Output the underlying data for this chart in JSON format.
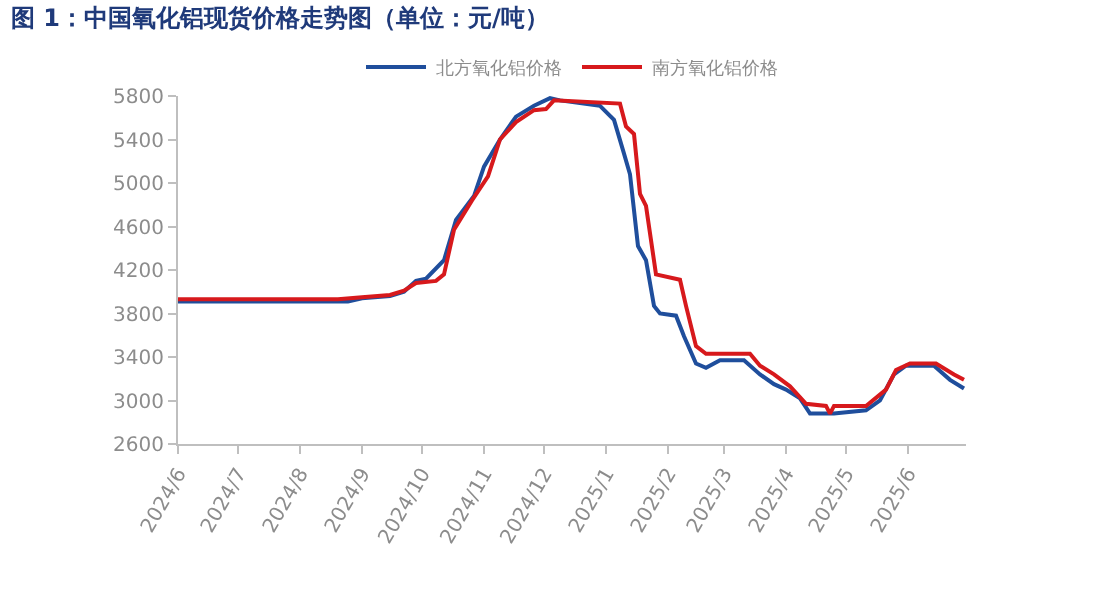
{
  "chart_data": {
    "type": "line",
    "title": "图 1：中国氧化铝现货价格走势图（单位：元/吨）",
    "xlim": [
      "2024-06-01",
      "2025-06-30"
    ],
    "xticks": [
      {
        "value": "2024-06-01",
        "label": "2024/6"
      },
      {
        "value": "2024-07-01",
        "label": "2024/7"
      },
      {
        "value": "2024-08-01",
        "label": "2024/8"
      },
      {
        "value": "2024-09-01",
        "label": "2024/9"
      },
      {
        "value": "2024-10-01",
        "label": "2024/10"
      },
      {
        "value": "2024-11-01",
        "label": "2024/11"
      },
      {
        "value": "2024-12-01",
        "label": "2024/12"
      },
      {
        "value": "2025-01-01",
        "label": "2025/1"
      },
      {
        "value": "2025-02-01",
        "label": "2025/2"
      },
      {
        "value": "2025-03-01",
        "label": "2025/3"
      },
      {
        "value": "2025-04-01",
        "label": "2025/4"
      },
      {
        "value": "2025-05-01",
        "label": "2025/5"
      },
      {
        "value": "2025-06-01",
        "label": "2025/6"
      }
    ],
    "ylim": [
      2600,
      5800
    ],
    "yticks": [
      2600,
      3000,
      3400,
      3800,
      4200,
      4600,
      5000,
      5400,
      5800
    ],
    "legend": "top",
    "marker": "none",
    "line_style": "solid",
    "series": [
      {
        "name": "北方氧化铝价格",
        "color": "#1f4e9c",
        "x": [
          "2024-06-01",
          "2024-08-25",
          "2024-09-01",
          "2024-09-15",
          "2024-09-22",
          "2024-09-28",
          "2024-10-03",
          "2024-10-12",
          "2024-10-18",
          "2024-10-27",
          "2024-11-01",
          "2024-11-09",
          "2024-11-17",
          "2024-11-26",
          "2024-12-04",
          "2024-12-09",
          "2024-12-29",
          "2025-01-05",
          "2025-01-10",
          "2025-01-13",
          "2025-01-17",
          "2025-01-21",
          "2025-01-25",
          "2025-01-28",
          "2025-02-05",
          "2025-02-09",
          "2025-02-15",
          "2025-02-20",
          "2025-02-27",
          "2025-03-11",
          "2025-03-19",
          "2025-03-26",
          "2025-04-01",
          "2025-04-08",
          "2025-04-13",
          "2025-04-25",
          "2025-05-11",
          "2025-05-18",
          "2025-05-25",
          "2025-05-31",
          "2025-06-14",
          "2025-06-22",
          "2025-06-29"
        ],
        "values": [
          3910,
          3910,
          3940,
          3960,
          4000,
          4100,
          4120,
          4290,
          4660,
          4880,
          5150,
          5400,
          5610,
          5710,
          5780,
          5760,
          5710,
          5580,
          5270,
          5080,
          4420,
          4290,
          3870,
          3800,
          3780,
          3590,
          3340,
          3300,
          3370,
          3370,
          3240,
          3150,
          3100,
          3020,
          2880,
          2880,
          2910,
          3000,
          3240,
          3320,
          3320,
          3190,
          3110
        ]
      },
      {
        "name": "南方氧化铝价格",
        "color": "#d7191c",
        "x": [
          "2024-06-01",
          "2024-08-20",
          "2024-09-01",
          "2024-09-15",
          "2024-09-22",
          "2024-09-28",
          "2024-10-08",
          "2024-10-12",
          "2024-10-17",
          "2024-10-26",
          "2024-11-03",
          "2024-11-09",
          "2024-11-17",
          "2024-11-26",
          "2024-12-02",
          "2024-12-06",
          "2025-01-08",
          "2025-01-11",
          "2025-01-15",
          "2025-01-18",
          "2025-01-21",
          "2025-01-26",
          "2025-02-07",
          "2025-02-10",
          "2025-02-15",
          "2025-02-20",
          "2025-03-14",
          "2025-03-19",
          "2025-03-26",
          "2025-04-03",
          "2025-04-11",
          "2025-04-21",
          "2025-04-23",
          "2025-04-25",
          "2025-05-11",
          "2025-05-21",
          "2025-05-26",
          "2025-06-02",
          "2025-06-15",
          "2025-06-24",
          "2025-06-29"
        ],
        "values": [
          3930,
          3930,
          3950,
          3970,
          4010,
          4080,
          4100,
          4160,
          4570,
          4840,
          5060,
          5400,
          5560,
          5670,
          5680,
          5760,
          5730,
          5520,
          5450,
          4900,
          4790,
          4160,
          4110,
          3870,
          3500,
          3430,
          3430,
          3320,
          3240,
          3130,
          2970,
          2950,
          2880,
          2950,
          2950,
          3100,
          3280,
          3340,
          3340,
          3240,
          3190
        ]
      }
    ]
  }
}
